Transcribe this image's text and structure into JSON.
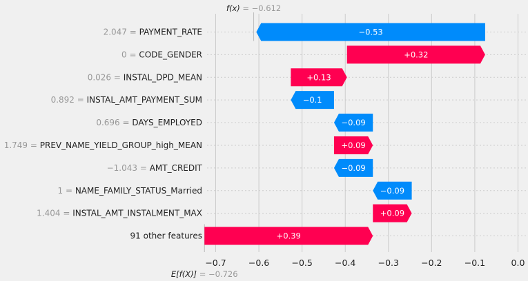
{
  "chart_data": {
    "type": "waterfall",
    "title": "",
    "xlabel": "",
    "ylabel": "",
    "base_value": -0.726,
    "output_value": -0.612,
    "base_label_symbol": "E[f(X)]",
    "base_label_value": " = −0.726",
    "output_label_symbol": "f(x)",
    "output_label_value": " = −0.612",
    "xlim": [
      -0.72,
      0.02
    ],
    "xticks": [
      {
        "value": -0.7,
        "label": "−0.7"
      },
      {
        "value": -0.6,
        "label": "−0.6"
      },
      {
        "value": -0.5,
        "label": "−0.5"
      },
      {
        "value": -0.4,
        "label": "−0.4"
      },
      {
        "value": -0.3,
        "label": "−0.3"
      },
      {
        "value": -0.2,
        "label": "−0.2"
      },
      {
        "value": -0.1,
        "label": "−0.1"
      },
      {
        "value": 0.0,
        "label": "0.0"
      }
    ],
    "grid": true,
    "colors": {
      "positive": "#ff0051",
      "negative": "#008bfb",
      "background": "#f0f0f0",
      "grid": "#cbcbcb",
      "muted": "#999999"
    },
    "features": [
      {
        "value_text": "2.047",
        "name": "PAYMENT_RATE",
        "contribution": -0.53,
        "label": "−0.53"
      },
      {
        "value_text": "0",
        "name": "CODE_GENDER",
        "contribution": 0.32,
        "label": "+0.32"
      },
      {
        "value_text": "0.026",
        "name": "INSTAL_DPD_MEAN",
        "contribution": 0.13,
        "label": "+0.13"
      },
      {
        "value_text": "0.892",
        "name": "INSTAL_AMT_PAYMENT_SUM",
        "contribution": -0.1,
        "label": "−0.1"
      },
      {
        "value_text": "0.696",
        "name": "DAYS_EMPLOYED",
        "contribution": -0.09,
        "label": "−0.09"
      },
      {
        "value_text": "1.749",
        "name": "PREV_NAME_YIELD_GROUP_high_MEAN",
        "contribution": 0.09,
        "label": "+0.09"
      },
      {
        "value_text": "−1.043",
        "name": "AMT_CREDIT",
        "contribution": -0.09,
        "label": "−0.09"
      },
      {
        "value_text": "1",
        "name": "NAME_FAMILY_STATUS_Married",
        "contribution": -0.09,
        "label": "−0.09"
      },
      {
        "value_text": "1.404",
        "name": "INSTAL_AMT_INSTALMENT_MAX",
        "contribution": 0.09,
        "label": "+0.09"
      },
      {
        "value_text": "",
        "name": "91 other features",
        "contribution": 0.39,
        "label": "+0.39"
      }
    ]
  }
}
